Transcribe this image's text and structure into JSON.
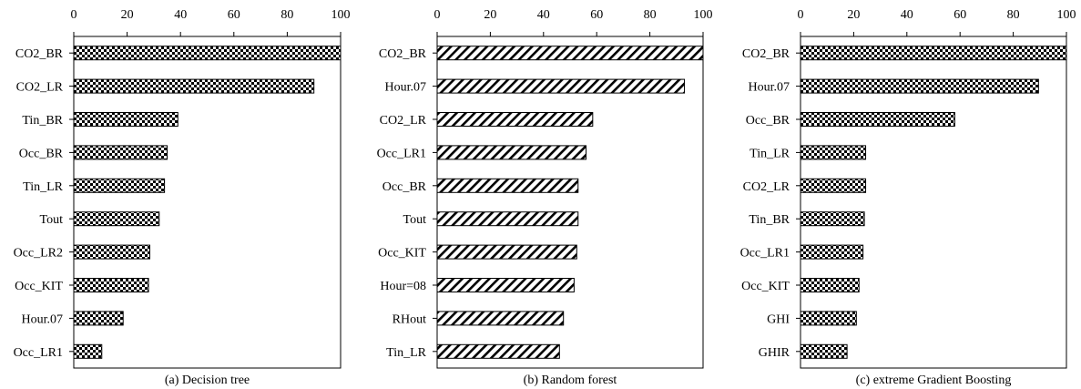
{
  "chart_data": [
    {
      "type": "bar",
      "orientation": "horizontal",
      "caption": "(a) Decision tree",
      "categories": [
        "CO2_BR",
        "CO2_LR",
        "Tin_BR",
        "Occ_BR",
        "Tin_LR",
        "Tout",
        "Occ_LR2",
        "Occ_KIT",
        "Hour.07",
        "Occ_LR1"
      ],
      "values": [
        100,
        90,
        39,
        35,
        34,
        32,
        28.5,
        28,
        18.5,
        10.5
      ],
      "xlim": [
        0,
        100
      ],
      "xticks": [
        "0",
        "20",
        "40",
        "60",
        "80",
        "100"
      ],
      "xaxis_position": "top",
      "pattern": "checker",
      "grid": false
    },
    {
      "type": "bar",
      "orientation": "horizontal",
      "caption": "(b) Random forest",
      "categories": [
        "CO2_BR",
        "Hour.07",
        "CO2_LR",
        "Occ_LR1",
        "Occ_BR",
        "Tout",
        "Occ_KIT",
        "Hour=08",
        "RHout",
        "Tin_LR"
      ],
      "values": [
        100,
        93,
        58.5,
        56,
        53,
        53,
        52.5,
        51.5,
        47.5,
        46
      ],
      "xlim": [
        0,
        100
      ],
      "xticks": [
        "0",
        "20",
        "40",
        "60",
        "80",
        "100"
      ],
      "xaxis_position": "top",
      "pattern": "diagonal",
      "grid": false
    },
    {
      "type": "bar",
      "orientation": "horizontal",
      "caption": "(c) extreme Gradient Boosting",
      "categories": [
        "CO2_BR",
        "Hour.07",
        "Occ_BR",
        "Tin_LR",
        "CO2_LR",
        "Tin_BR",
        "Occ_LR1",
        "Occ_KIT",
        "GHI",
        "GHIR"
      ],
      "values": [
        100,
        89.5,
        58,
        24.5,
        24.5,
        24,
        23.5,
        22,
        21,
        17.5
      ],
      "xlim": [
        0,
        100
      ],
      "xticks": [
        "0",
        "20",
        "40",
        "60",
        "80",
        "100"
      ],
      "xaxis_position": "top",
      "pattern": "checker",
      "grid": false
    }
  ]
}
